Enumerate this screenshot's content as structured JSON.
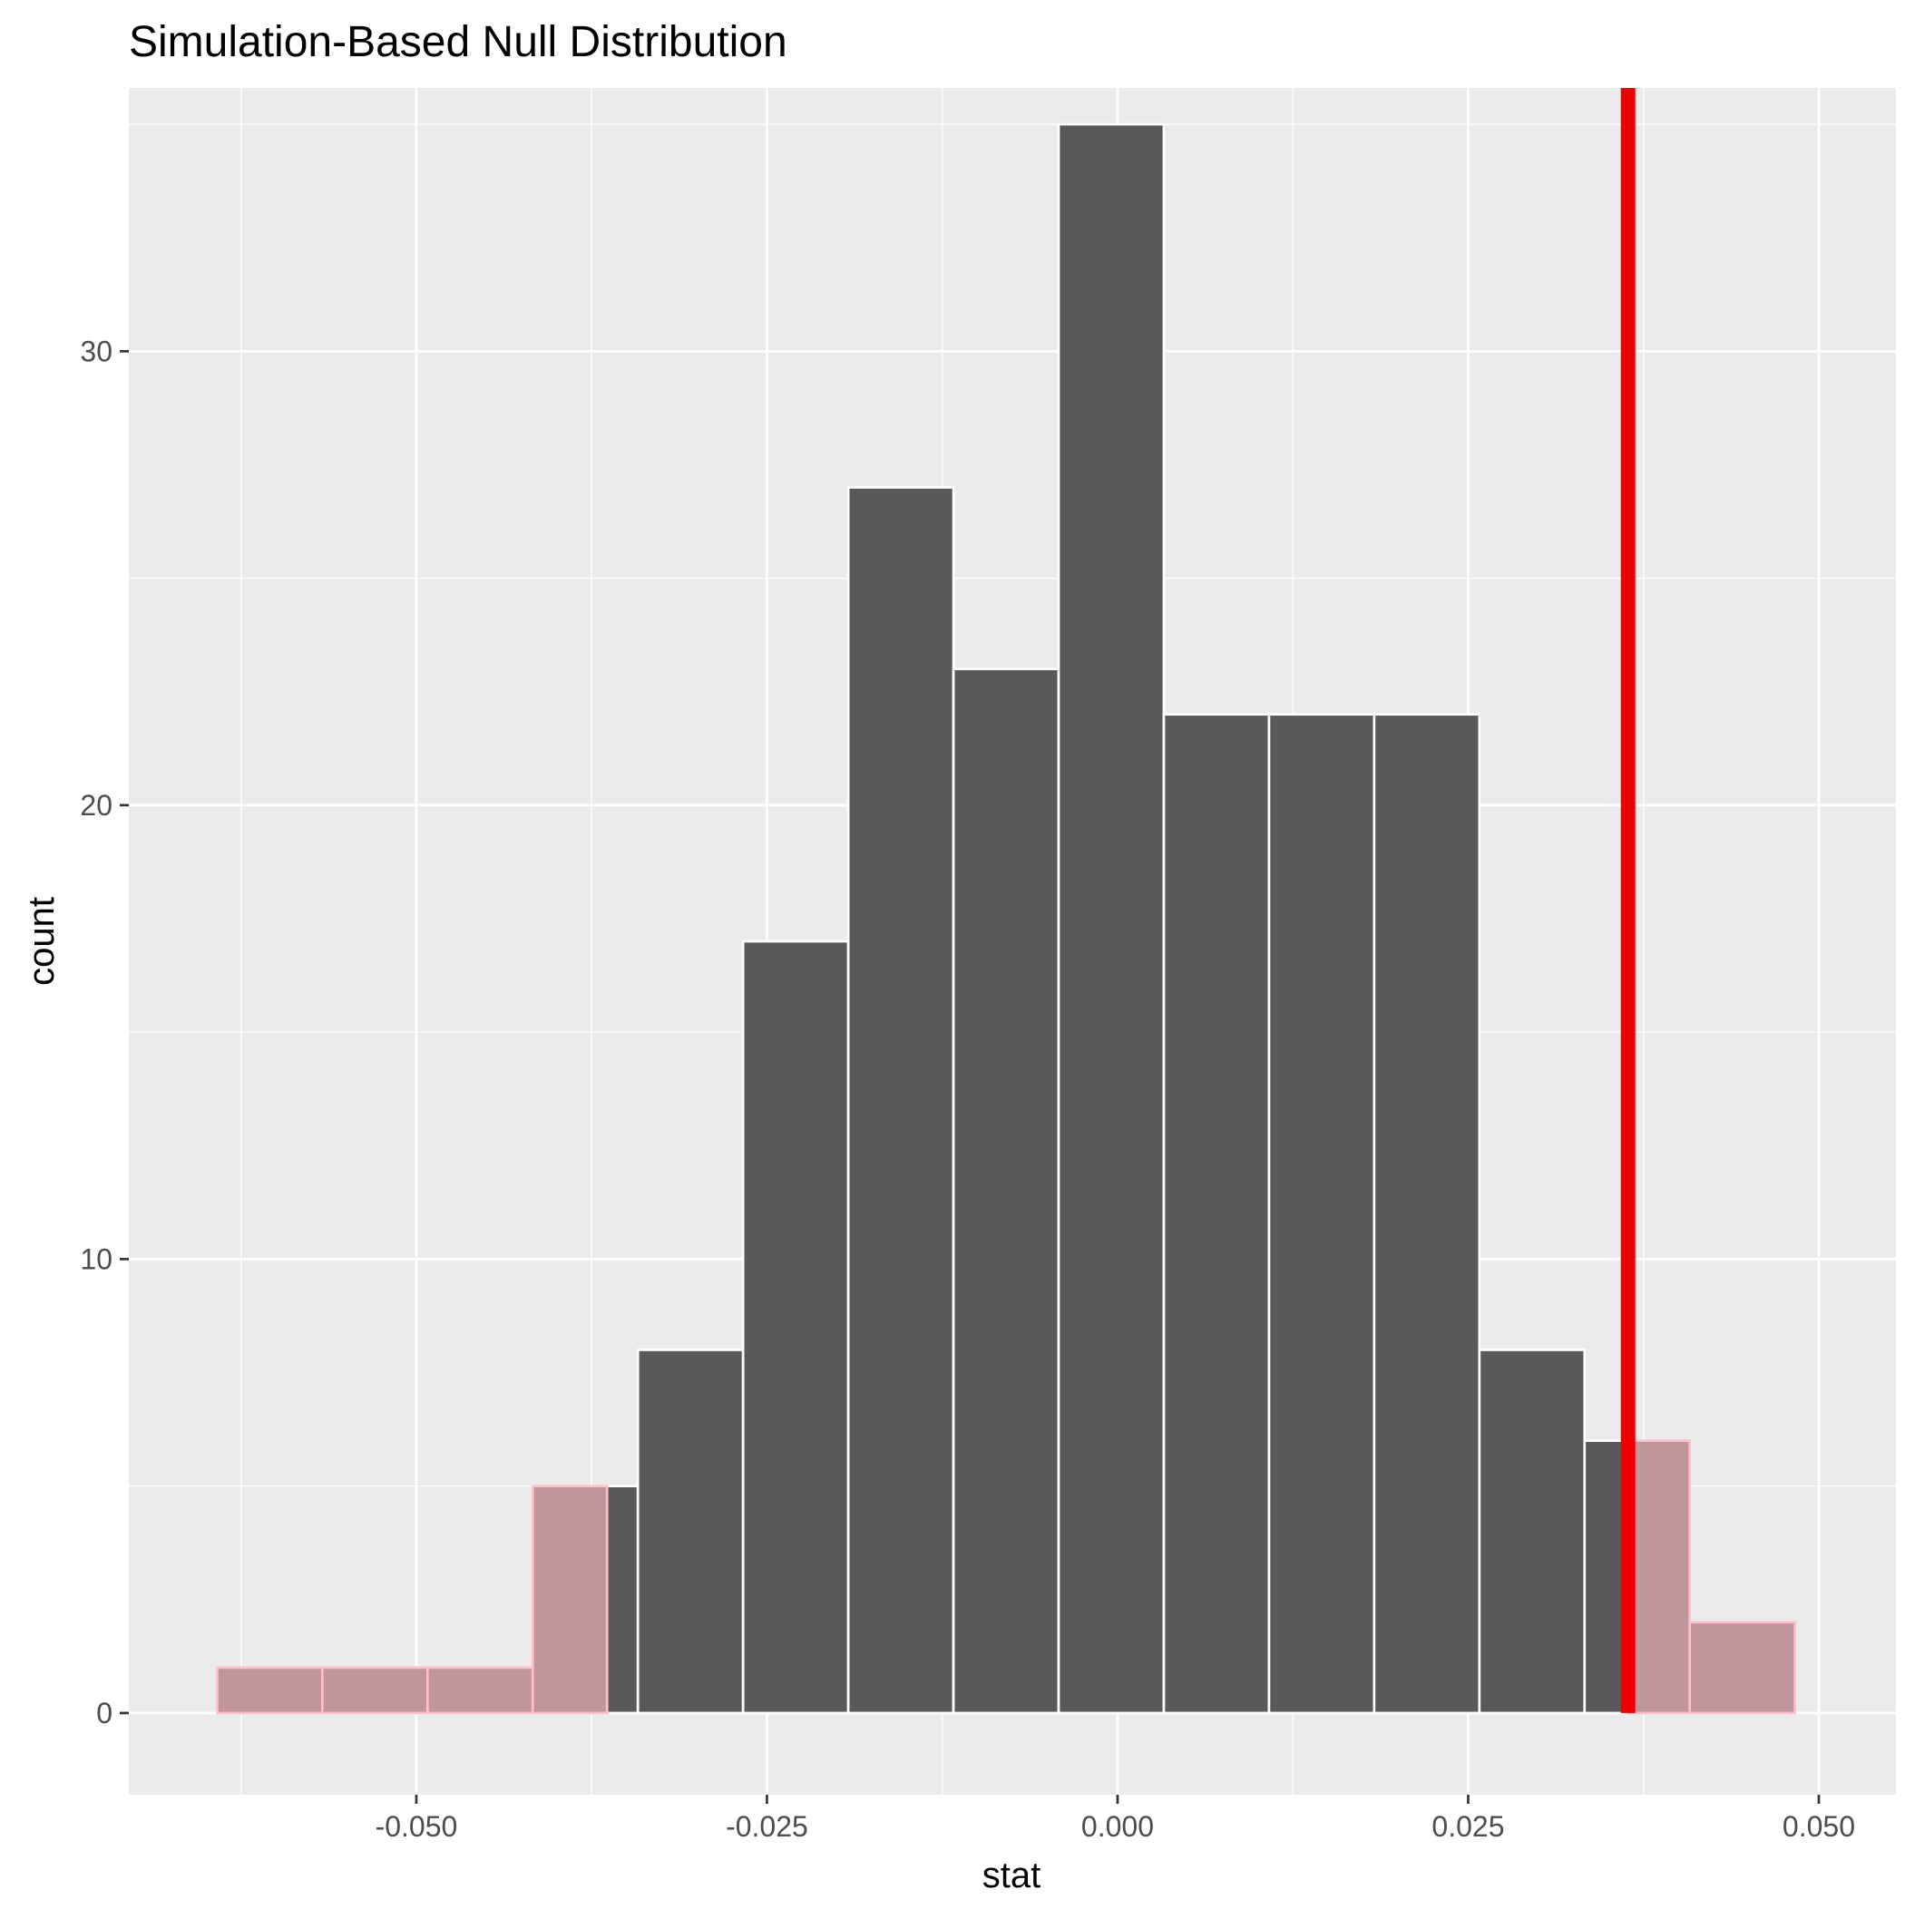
{
  "chart_data": {
    "type": "bar",
    "title": "Simulation-Based Null Distribution",
    "xlabel": "stat",
    "ylabel": "count",
    "xlim": [
      -0.0705,
      0.0555
    ],
    "ylim": [
      -1.8,
      35.8
    ],
    "x_ticks": [
      -0.05,
      -0.025,
      0.0,
      0.025,
      0.05
    ],
    "x_tick_labels": [
      "-0.050",
      "-0.025",
      "0.000",
      "0.025",
      "0.050"
    ],
    "y_ticks": [
      0,
      10,
      20,
      30
    ],
    "y_tick_labels": [
      "0",
      "10",
      "20",
      "30"
    ],
    "grid": true,
    "colors": {
      "panel_background": "#ebebeb",
      "grid_line": "#ffffff",
      "bar_fill": "#595959",
      "bar_outline": "#ffffff",
      "shaded_fill": "#c0959c",
      "shaded_outline": "#ffc0cb",
      "observed_line": "#ee0000"
    },
    "bins": [
      {
        "x0": -0.0642,
        "x1": -0.0567,
        "count": 1
      },
      {
        "x0": -0.0567,
        "x1": -0.0492,
        "count": 1
      },
      {
        "x0": -0.0492,
        "x1": -0.0417,
        "count": 1
      },
      {
        "x0": -0.0417,
        "x1": -0.0342,
        "count": 5
      },
      {
        "x0": -0.0342,
        "x1": -0.0267,
        "count": 8
      },
      {
        "x0": -0.0267,
        "x1": -0.0192,
        "count": 17
      },
      {
        "x0": -0.0192,
        "x1": -0.0117,
        "count": 27
      },
      {
        "x0": -0.0117,
        "x1": -0.0042,
        "count": 23
      },
      {
        "x0": -0.0042,
        "x1": 0.0033,
        "count": 35
      },
      {
        "x0": 0.0033,
        "x1": 0.0108,
        "count": 22
      },
      {
        "x0": 0.0108,
        "x1": 0.0183,
        "count": 22
      },
      {
        "x0": 0.0183,
        "x1": 0.0258,
        "count": 22
      },
      {
        "x0": 0.0258,
        "x1": 0.0333,
        "count": 8
      },
      {
        "x0": 0.0333,
        "x1": 0.0408,
        "count": 6
      },
      {
        "x0": 0.0408,
        "x1": 0.0483,
        "count": 2
      }
    ],
    "observed_stat": 0.0364,
    "shade_direction": "two-sided",
    "shade_lower_bound": -0.0364,
    "shade_upper_bound": 0.0364
  }
}
